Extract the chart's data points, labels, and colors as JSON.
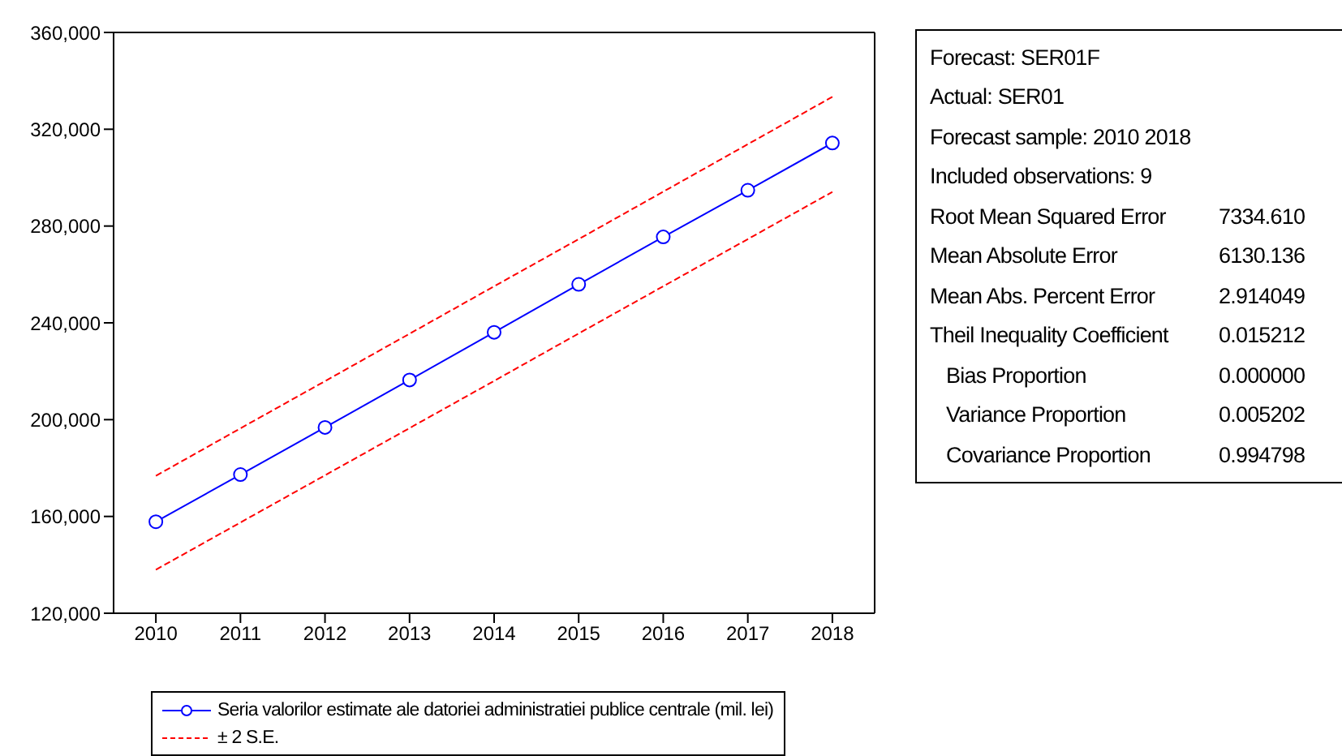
{
  "chart_data": {
    "type": "line",
    "categories": [
      "2010",
      "2011",
      "2012",
      "2013",
      "2014",
      "2015",
      "2016",
      "2017",
      "2018"
    ],
    "series": [
      {
        "name": "Seria valorilor estimate ale datoriei administratiei publice centrale (mil. lei)",
        "color": "#0000ff",
        "marker": "circle",
        "line_style": "solid",
        "values": [
          157800,
          177300,
          196800,
          216400,
          236100,
          255900,
          275500,
          294800,
          314300
        ]
      },
      {
        "name": "± 2 S.E.",
        "color": "#ff0000",
        "marker": "none",
        "line_style": "dashed",
        "values": [
          176800,
          196400,
          215900,
          235500,
          255100,
          274600,
          294200,
          313800,
          333400
        ]
      },
      {
        "color": "#ff0000",
        "marker": "none",
        "line_style": "dashed",
        "values": [
          138000,
          157500,
          177000,
          196500,
          216000,
          235600,
          255100,
          274600,
          294100
        ]
      }
    ],
    "ylim": [
      120000,
      360000
    ],
    "yticks": [
      {
        "value": 120000,
        "label": "120,000"
      },
      {
        "value": 160000,
        "label": "160,000"
      },
      {
        "value": 200000,
        "label": "200,000"
      },
      {
        "value": 240000,
        "label": "240,000"
      },
      {
        "value": 280000,
        "label": "280,000"
      },
      {
        "value": 320000,
        "label": "320,000"
      },
      {
        "value": 360000,
        "label": "360,000"
      }
    ],
    "grid": false,
    "legend": "bottom",
    "annotations": [
      "Forecast: SER01F",
      "Actual: SER01",
      "Forecast sample: 2010 2018",
      "Included observations: 9",
      "Root Mean Squared Error\t7334.610",
      "Mean Absolute Error\t6130.136",
      "Mean Abs. Percent Error\t2.914049",
      "Theil Inequality Coefficient\t0.015212",
      "   Bias Proportion\t0.000000",
      "   Variance Proportion\t0.005202",
      "   Covariance Proportion\t0.994798"
    ]
  }
}
